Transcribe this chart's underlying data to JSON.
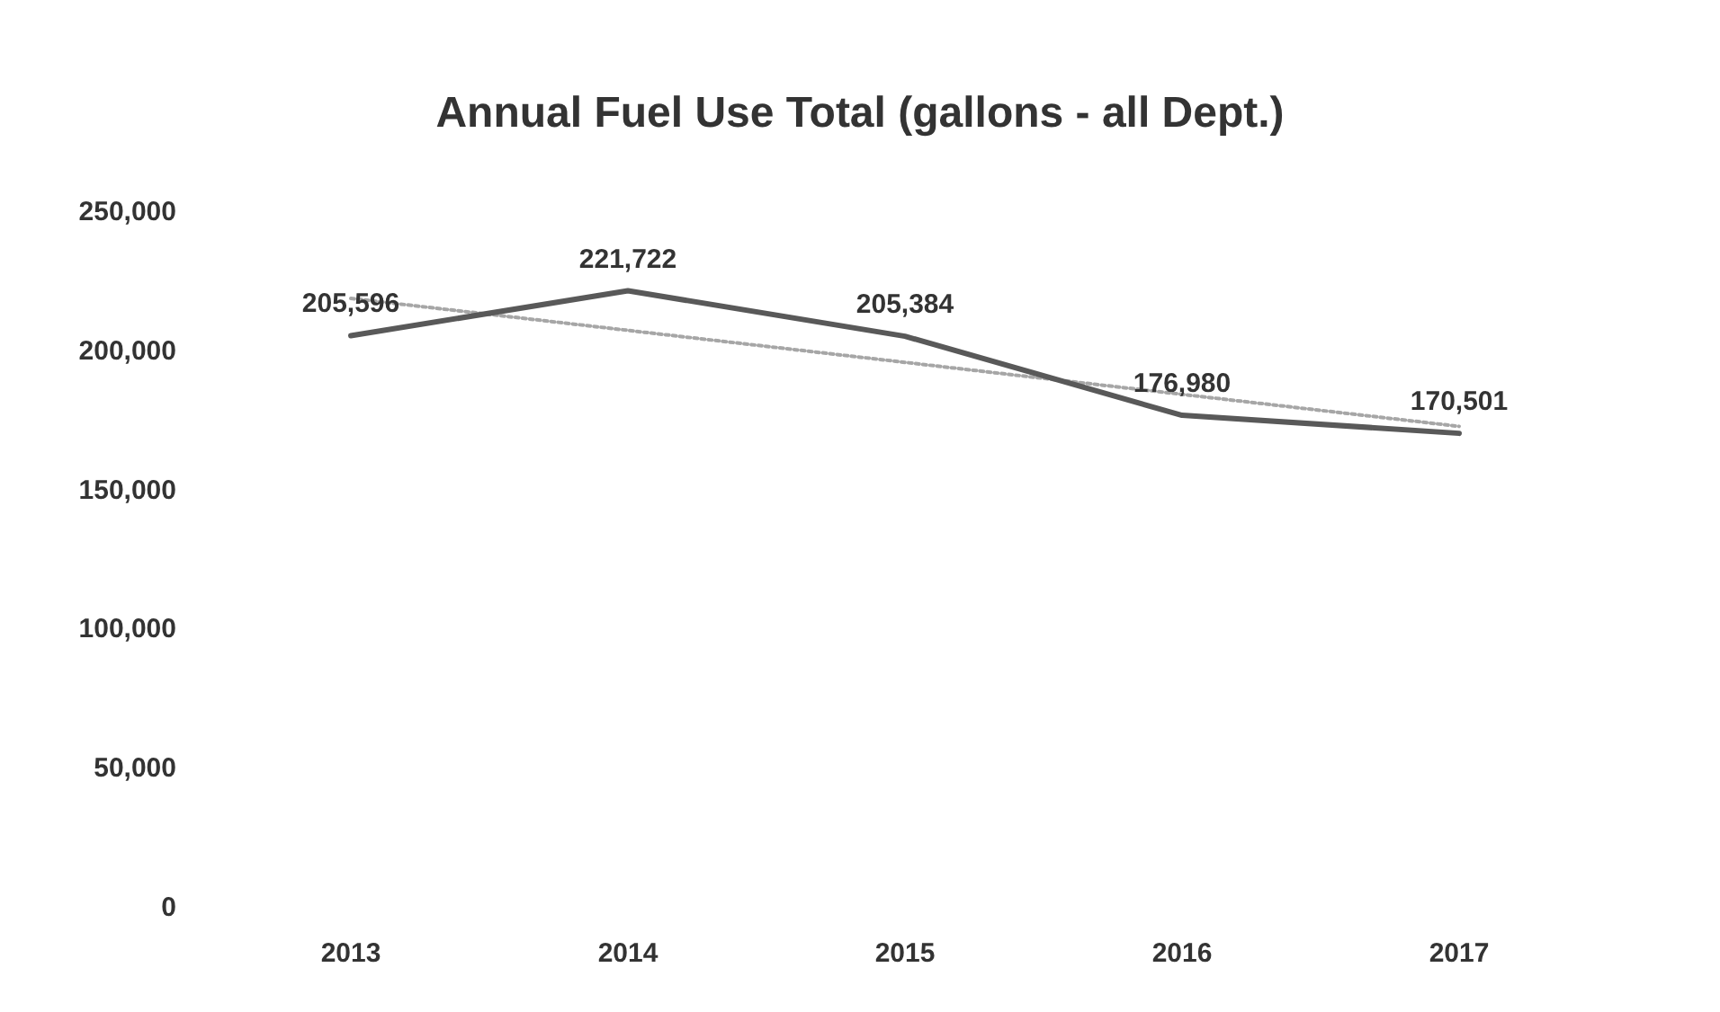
{
  "chart_data": {
    "type": "line",
    "title": "Annual Fuel Use Total (gallons - all Dept.)",
    "categories": [
      "2013",
      "2014",
      "2015",
      "2016",
      "2017"
    ],
    "series": [
      {
        "color": "#595959",
        "values": [
          205596,
          221722,
          205384,
          176980,
          170501
        ],
        "value_labels": [
          "205,596",
          "221,722",
          "205,384",
          "176,980",
          "170,501"
        ]
      },
      {
        "color": "#a6a6a6",
        "values": [
          219000,
          207500,
          196000,
          184500,
          173000
        ],
        "line_style": "dotted"
      }
    ],
    "ylim": [
      0,
      250000
    ],
    "yticks": [
      {
        "value": 0,
        "label": "0"
      },
      {
        "value": 50000,
        "label": "50,000"
      },
      {
        "value": 100000,
        "label": "100,000"
      },
      {
        "value": 150000,
        "label": "150,000"
      },
      {
        "value": 200000,
        "label": "200,000"
      },
      {
        "value": 250000,
        "label": "250,000"
      }
    ],
    "grid": false,
    "marker": "none"
  }
}
